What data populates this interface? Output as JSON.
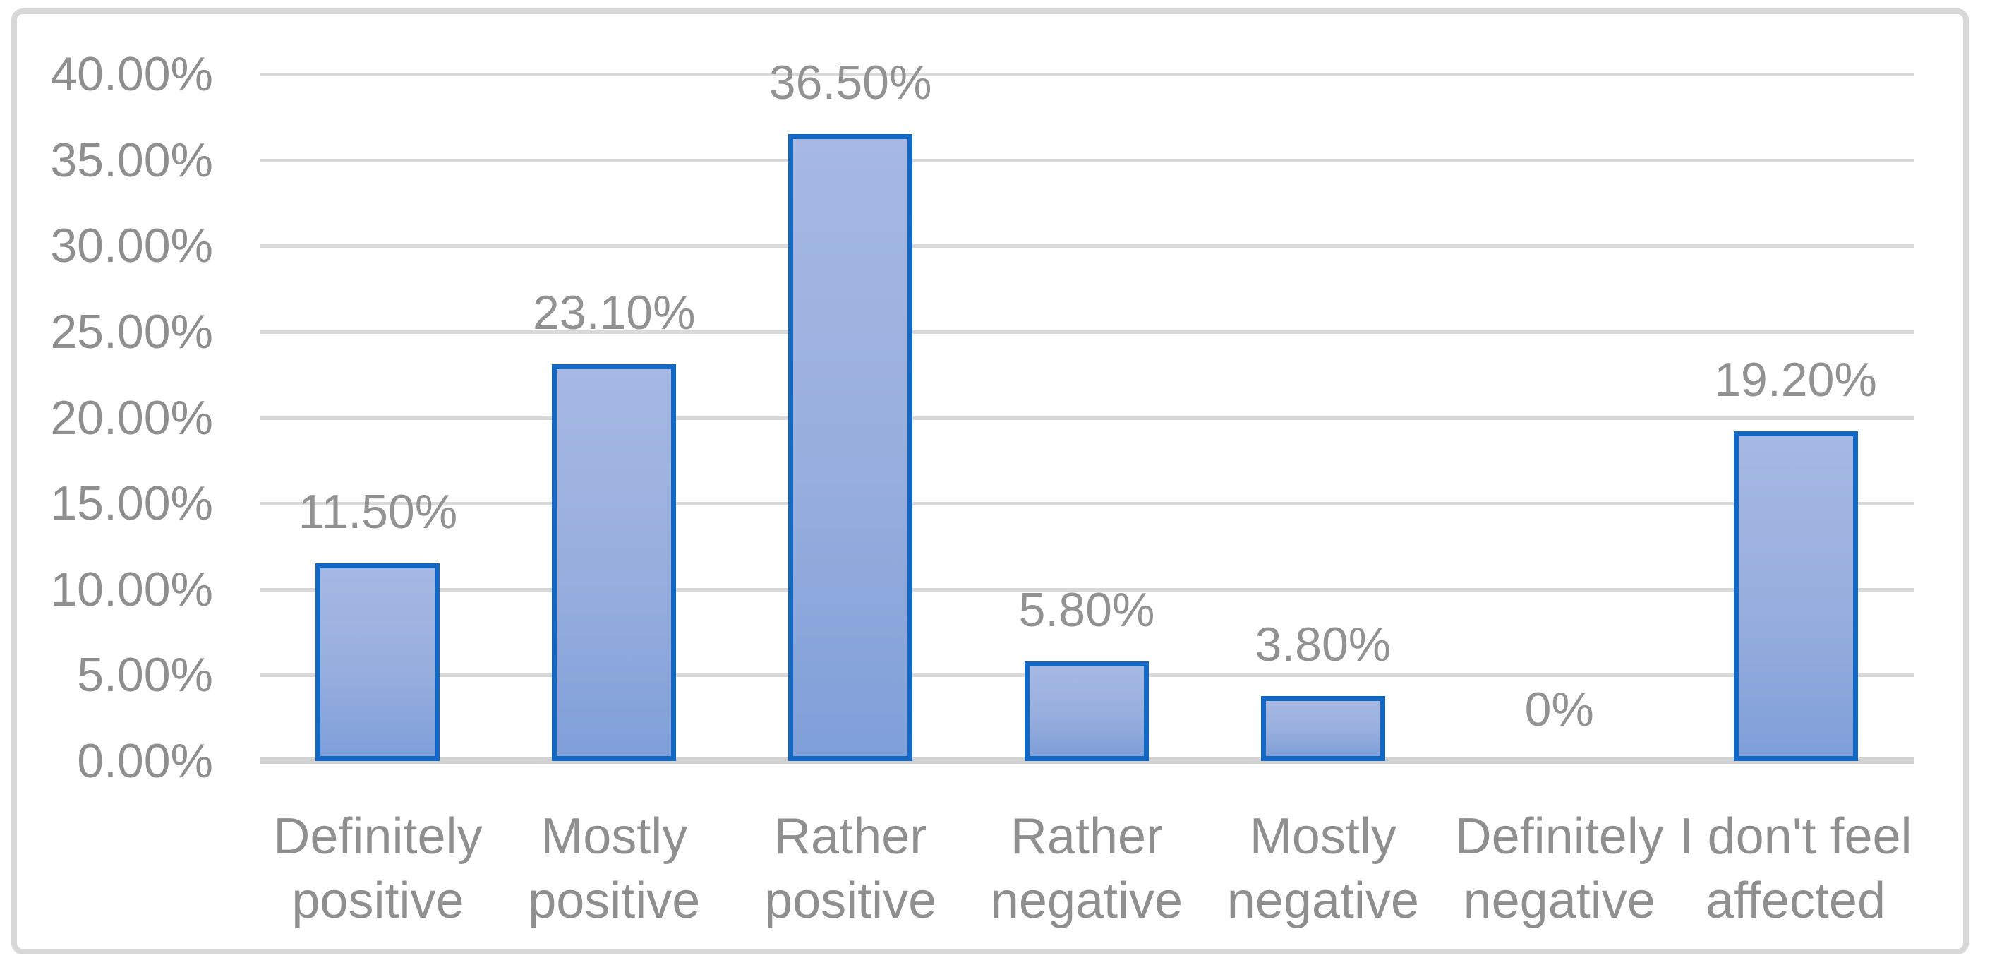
{
  "chart_data": {
    "type": "bar",
    "title": "",
    "categories": [
      "Definitely positive",
      "Mostly positive",
      "Rather positive",
      "Rather negative",
      "Mostly negative",
      "Definitely negative",
      "I don't feel affected"
    ],
    "category_lines": [
      [
        "Definitely",
        "positive"
      ],
      [
        "Mostly",
        "positive"
      ],
      [
        "Rather",
        "positive"
      ],
      [
        "Rather",
        "negative"
      ],
      [
        "Mostly",
        "negative"
      ],
      [
        "Definitely",
        "negative"
      ],
      [
        "I don't feel",
        "affected"
      ]
    ],
    "values": [
      11.5,
      23.1,
      36.5,
      5.8,
      3.8,
      0,
      19.2
    ],
    "data_labels": [
      "11.50%",
      "23.10%",
      "36.50%",
      "5.80%",
      "3.80%",
      "0%",
      "19.20%"
    ],
    "yticks": [
      "40.00%",
      "35.00%",
      "30.00%",
      "25.00%",
      "20.00%",
      "15.00%",
      "10.00%",
      "5.00%",
      "0.00%"
    ],
    "ytick_values": [
      40,
      35,
      30,
      25,
      20,
      15,
      10,
      5,
      0
    ],
    "ylim": [
      0,
      40
    ],
    "xlabel": "",
    "ylabel": "",
    "grid": "horizontal",
    "legend": "none",
    "colors": {
      "bar_fill_top": "#a6b8e3",
      "bar_fill_bottom": "#7f9fd9",
      "bar_border": "#1268c3",
      "gridline": "#d9d9d9",
      "axis_line": "#d2d2d2",
      "text": "#8f8f8f",
      "frame_border": "#d8d8d8",
      "background": "#ffffff"
    }
  }
}
